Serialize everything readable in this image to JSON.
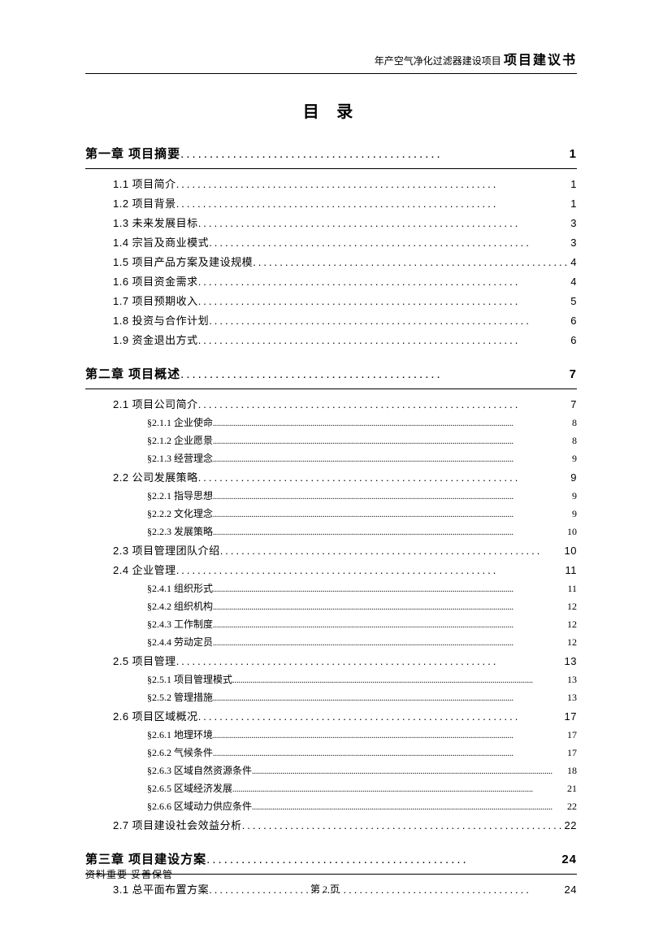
{
  "header": {
    "small": "年产空气净化过滤器建设项目",
    "big": "项目建议书"
  },
  "title": "目 录",
  "toc": [
    {
      "level": "chapter",
      "label": "第一章 项目摘要",
      "page": "1"
    },
    {
      "level": "section",
      "label": "1.1 项目简介",
      "page": "1"
    },
    {
      "level": "section",
      "label": "1.2 项目背景",
      "page": "1"
    },
    {
      "level": "section",
      "label": "1.3 未来发展目标",
      "page": "3"
    },
    {
      "level": "section",
      "label": "1.4 宗旨及商业模式",
      "page": "3"
    },
    {
      "level": "section",
      "label": "1.5 项目产品方案及建设规模",
      "page": "4"
    },
    {
      "level": "section",
      "label": "1.6 项目资金需求",
      "page": "4"
    },
    {
      "level": "section",
      "label": "1.7 项目预期收入",
      "page": "5"
    },
    {
      "level": "section",
      "label": "1.8 投资与合作计划",
      "page": "6"
    },
    {
      "level": "section",
      "label": "1.9 资金退出方式",
      "page": "6"
    },
    {
      "level": "chapter",
      "label": "第二章 项目概述",
      "page": "7"
    },
    {
      "level": "section",
      "label": "2.1 项目公司简介",
      "page": "7"
    },
    {
      "level": "subsection",
      "label": "§2.1.1 企业使命",
      "page": "8"
    },
    {
      "level": "subsection",
      "label": "§2.1.2 企业愿景",
      "page": "8"
    },
    {
      "level": "subsection",
      "label": "§2.1.3 经营理念",
      "page": "9"
    },
    {
      "level": "section",
      "label": "2.2 公司发展策略",
      "page": "9"
    },
    {
      "level": "subsection",
      "label": "§2.2.1 指导思想",
      "page": "9"
    },
    {
      "level": "subsection",
      "label": "§2.2.2 文化理念",
      "page": "9"
    },
    {
      "level": "subsection",
      "label": "§2.2.3 发展策略",
      "page": "10"
    },
    {
      "level": "section",
      "label": "2.3 项目管理团队介绍",
      "page": "10"
    },
    {
      "level": "section",
      "label": "2.4 企业管理",
      "page": "11"
    },
    {
      "level": "subsection",
      "label": "§2.4.1 组织形式",
      "page": "11"
    },
    {
      "level": "subsection",
      "label": "§2.4.2 组织机构",
      "page": "12"
    },
    {
      "level": "subsection",
      "label": "§2.4.3 工作制度",
      "page": "12"
    },
    {
      "level": "subsection",
      "label": "§2.4.4 劳动定员",
      "page": "12"
    },
    {
      "level": "section",
      "label": "2.5 项目管理",
      "page": "13"
    },
    {
      "level": "subsection",
      "label": "§2.5.1 项目管理模式",
      "page": "13"
    },
    {
      "level": "subsection",
      "label": "§2.5.2 管理措施",
      "page": "13"
    },
    {
      "level": "section",
      "label": "2.6 项目区域概况",
      "page": "17"
    },
    {
      "level": "subsection",
      "label": "§2.6.1 地理环境",
      "page": "17"
    },
    {
      "level": "subsection",
      "label": "§2.6.2 气候条件",
      "page": "17"
    },
    {
      "level": "subsection",
      "label": "§2.6.3 区域自然资源条件",
      "page": "18"
    },
    {
      "level": "subsection",
      "label": "§2.6.5 区域经济发展",
      "page": "21"
    },
    {
      "level": "subsection",
      "label": "§2.6.6 区域动力供应条件",
      "page": "22"
    },
    {
      "level": "section",
      "label": "2.7 项目建设社会效益分析",
      "page": "22"
    },
    {
      "level": "chapter",
      "label": "第三章 项目建设方案",
      "page": "24"
    },
    {
      "level": "section",
      "label": "3.1 总平面布置方案",
      "page": "24"
    }
  ],
  "footer": {
    "left": "资料重要 妥善保管",
    "center": "第 2 页"
  },
  "dotStrings": {
    "chapter": ".............................................",
    "section": "............................................................",
    "subsection": "...................................................................................................................................................."
  }
}
